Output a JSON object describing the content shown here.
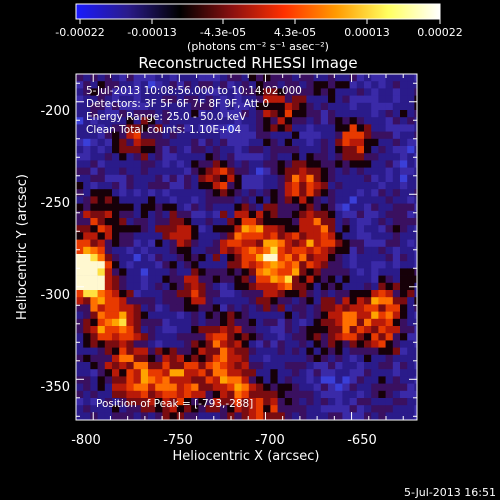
{
  "colorbar": {
    "tick_labels": [
      "-0.00022",
      "-0.00013",
      "-4.3e-05",
      "4.3e-05",
      "0.00013",
      "0.00022"
    ],
    "units": "(photons cm⁻² s⁻¹ asec⁻²)",
    "colors": [
      "#1a1aff",
      "#2a1b8a",
      "#000000",
      "#8a1010",
      "#ff3000",
      "#ff9a00",
      "#ffff60",
      "#ffffff"
    ]
  },
  "plot": {
    "title": "Reconstructed RHESSI Image",
    "xlabel": "Heliocentric X (arcsec)",
    "ylabel": "Heliocentric Y (arcsec)",
    "xlim": [
      -810,
      -612
    ],
    "ylim": [
      -372,
      -185
    ],
    "x_ticks": [
      "-800",
      "-750",
      "-700",
      "-650"
    ],
    "x_tick_values": [
      -800,
      -750,
      -700,
      -650
    ],
    "y_ticks": [
      "-200",
      "-250",
      "-300",
      "-350"
    ],
    "y_tick_values": [
      -200,
      -250,
      -300,
      -350
    ],
    "info_lines": [
      "5-Jul-2013 10:08:56.000 to 10:14:02.000",
      "Detectors: 3F 5F 6F 7F 8F 9F, Att 0",
      "Energy Range: 25.0 - 50.0 keV",
      "Clean    Total counts: 1.10E+04"
    ],
    "peak_label": "Position of Peak = [-793,-288]",
    "peak": [
      -793,
      -288
    ]
  },
  "timestamp": "5-Jul-2013 16:51"
}
